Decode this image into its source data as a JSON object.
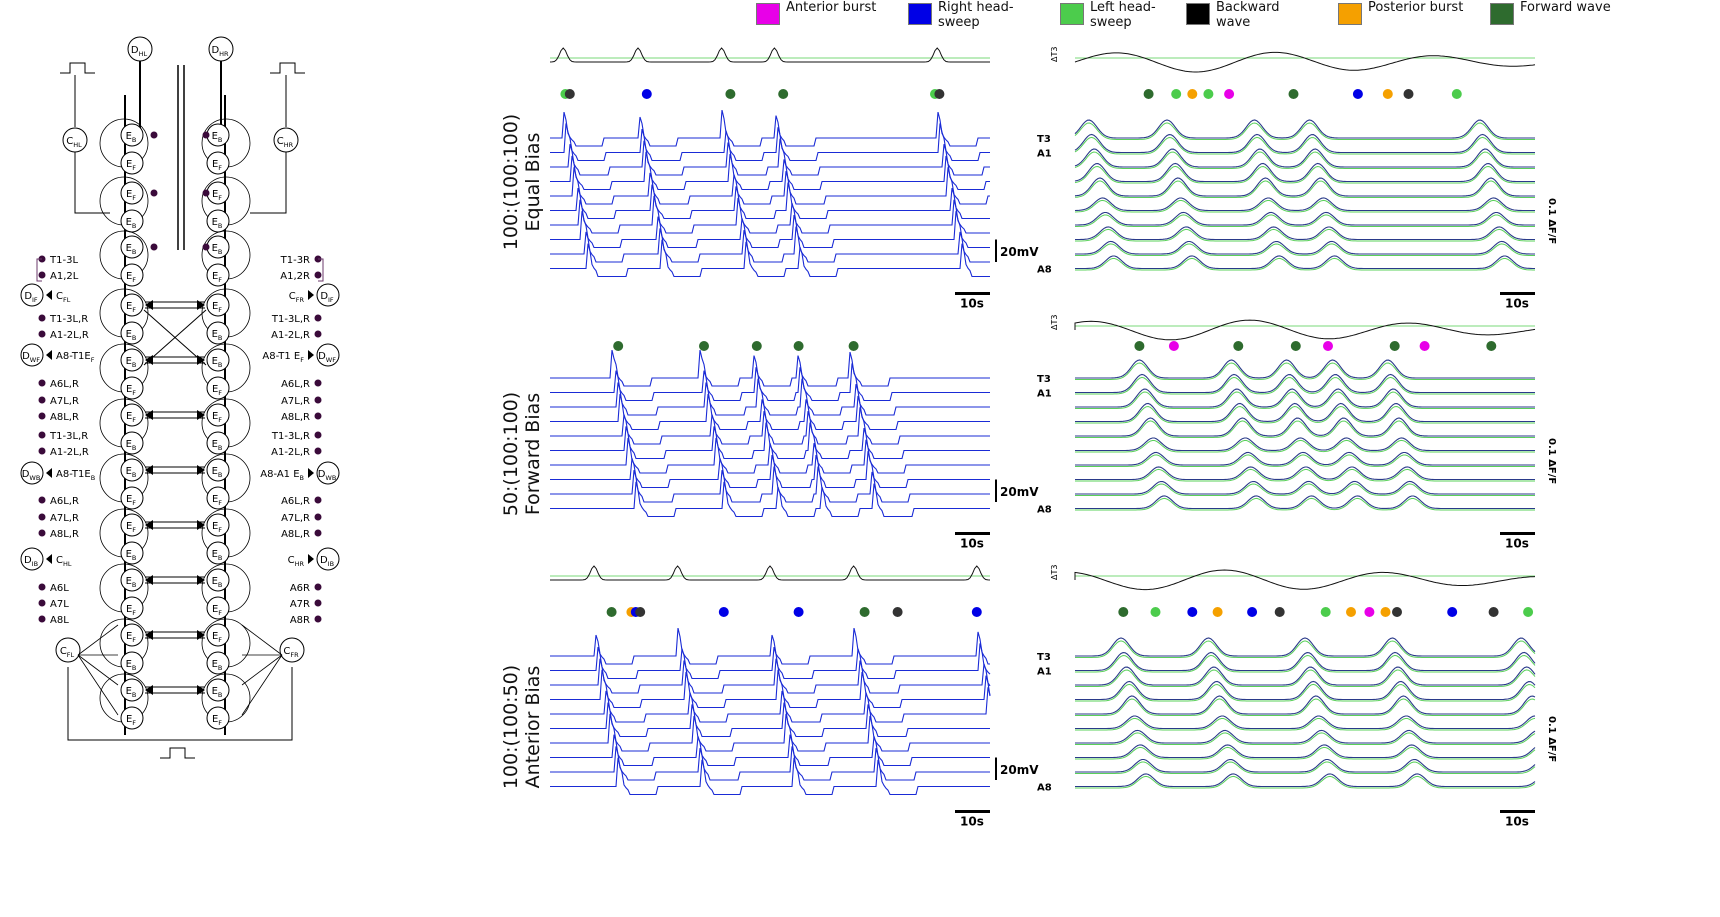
{
  "legend": [
    {
      "label": "Anterior burst",
      "color": "#e800e8"
    },
    {
      "label": "Right head-sweep",
      "color": "#0000e6"
    },
    {
      "label": "Left head-sweep",
      "color": "#4ccc4c"
    },
    {
      "label": "Backward wave",
      "color": "#000000"
    },
    {
      "label": "Posterior burst",
      "color": "#f5a000"
    },
    {
      "label": "Forward wave",
      "color": "#2e6b2e"
    }
  ],
  "rows": [
    {
      "label_line1": "100:(100:100)",
      "label_line2": "Equal Bias"
    },
    {
      "label_line1": "50:(100:100)",
      "label_line2": "Forward Bias"
    },
    {
      "label_line1": "100:(100:50)",
      "label_line2": "Anterior Bias"
    }
  ],
  "trace_labels": {
    "top": "T3",
    "second": "A1",
    "bottom": "A8",
    "delta": "ΔT3"
  },
  "scale": {
    "voltage": "20mV",
    "time": "10s",
    "fluor": "0.1 ΔF/F"
  },
  "diagram": {
    "top_left": "D",
    "top_left_sub": "HL",
    "top_right": "D",
    "top_right_sub": "HR",
    "c_hl": "C",
    "c_hl_sub": "HL",
    "c_hr": "C",
    "c_hr_sub": "HR",
    "c_fl": "C",
    "c_fl_sub": "FL",
    "c_fr": "C",
    "c_fr_sub": "FR",
    "eb": "E",
    "eb_sub": "B",
    "ef": "E",
    "ef_sub": "F",
    "left_texts": [
      "T1-3L",
      "A1,2L",
      "T1-3L,R",
      "A1-2L,R",
      "A6L,R",
      "A7L,R",
      "A8L,R",
      "T1-3L,R",
      "A1-2L,R",
      "A6L,R",
      "A7L,R",
      "A8L,R",
      "A6L",
      "A7L",
      "A8L"
    ],
    "right_texts": [
      "T1-3R",
      "A1,2R",
      "T1-3L,R",
      "A1-2L,R",
      "A6L,R",
      "A7L,R",
      "A8L,R",
      "T1-3L,R",
      "A1-2L,R",
      "A6L,R",
      "A7L,R",
      "A8L,R",
      "A6R",
      "A7R",
      "A8R"
    ],
    "d_if_left": "D",
    "d_if_left_sub": "IF",
    "c_fl_mid": "C",
    "c_fl_mid_sub": "FL",
    "d_if_right": "D",
    "d_if_right_sub": "IF",
    "c_fr_mid": "C",
    "c_fr_mid_sub": "FR",
    "d_wf_left": "D",
    "d_wf_left_sub": "WF",
    "wf_left_text": "A8-T1E",
    "wf_left_sub": "F",
    "d_wf_right": "D",
    "d_wf_right_sub": "WF",
    "wf_right_text": "A8-T1 E",
    "wf_right_sub": "F",
    "d_wb_left": "D",
    "d_wb_left_sub": "WB",
    "wb_left_text": "A8-T1E",
    "wb_left_sub": "B",
    "d_wb_right": "D",
    "d_wb_right_sub": "WB",
    "wb_right_text": "A8-A1 E",
    "wb_right_sub": "B",
    "d_ib_left": "D",
    "d_ib_left_sub": "IB",
    "c_hl_low": "C",
    "c_hl_low_sub": "HL",
    "d_ib_right": "D",
    "d_ib_right_sub": "IB",
    "c_hr_low": "C",
    "c_hr_low_sub": "HR"
  },
  "events": {
    "row1_sim": [
      [
        "#4ccc4c",
        0.035
      ],
      [
        "#333333",
        0.045
      ],
      [
        "#0000e6",
        0.22
      ],
      [
        "#2e6b2e",
        0.41
      ],
      [
        "#2e6b2e",
        0.53
      ],
      [
        "#4ccc4c",
        0.875
      ],
      [
        "#333333",
        0.885
      ]
    ],
    "row2_sim": [
      [
        "#2e6b2e",
        0.155
      ],
      [
        "#2e6b2e",
        0.35
      ],
      [
        "#2e6b2e",
        0.47
      ],
      [
        "#2e6b2e",
        0.565
      ],
      [
        "#2e6b2e",
        0.69
      ]
    ],
    "row3_sim": [
      [
        "#2e6b2e",
        0.14
      ],
      [
        "#f5a000",
        0.185
      ],
      [
        "#0000e6",
        0.195
      ],
      [
        "#333333",
        0.205
      ],
      [
        "#0000e6",
        0.395
      ],
      [
        "#0000e6",
        0.565
      ],
      [
        "#2e6b2e",
        0.715
      ],
      [
        "#333333",
        0.79
      ],
      [
        "#0000e6",
        0.97
      ]
    ],
    "row1_exp": [
      [
        "#2e6b2e",
        0.16
      ],
      [
        "#4ccc4c",
        0.22
      ],
      [
        "#f5a000",
        0.255
      ],
      [
        "#4ccc4c",
        0.29
      ],
      [
        "#e800e8",
        0.335
      ],
      [
        "#2e6b2e",
        0.475
      ],
      [
        "#0000e6",
        0.615
      ],
      [
        "#f5a000",
        0.68
      ],
      [
        "#333333",
        0.725
      ],
      [
        "#4ccc4c",
        0.83
      ]
    ],
    "row2_exp": [
      [
        "#2e6b2e",
        0.14
      ],
      [
        "#e800e8",
        0.215
      ],
      [
        "#2e6b2e",
        0.355
      ],
      [
        "#2e6b2e",
        0.48
      ],
      [
        "#e800e8",
        0.55
      ],
      [
        "#2e6b2e",
        0.695
      ],
      [
        "#e800e8",
        0.76
      ],
      [
        "#2e6b2e",
        0.905
      ]
    ],
    "row3_exp": [
      [
        "#2e6b2e",
        0.105
      ],
      [
        "#4ccc4c",
        0.175
      ],
      [
        "#0000e6",
        0.255
      ],
      [
        "#f5a000",
        0.31
      ],
      [
        "#0000e6",
        0.385
      ],
      [
        "#333333",
        0.445
      ],
      [
        "#4ccc4c",
        0.545
      ],
      [
        "#f5a000",
        0.6
      ],
      [
        "#e800e8",
        0.64
      ],
      [
        "#f5a000",
        0.675
      ],
      [
        "#333333",
        0.7
      ],
      [
        "#0000e6",
        0.82
      ],
      [
        "#333333",
        0.91
      ],
      [
        "#4ccc4c",
        0.985
      ]
    ]
  }
}
